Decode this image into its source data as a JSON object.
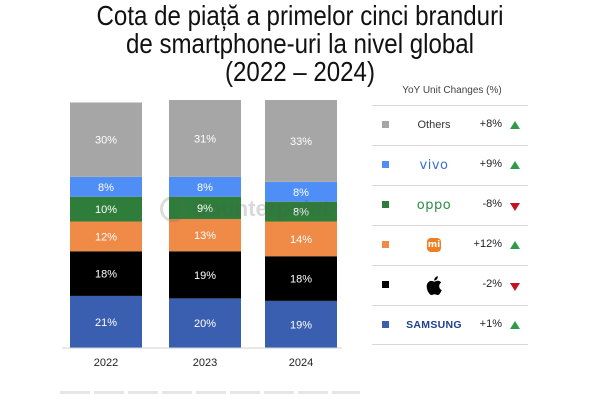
{
  "title_lines": [
    "Cota de piață a primelor cinci branduri",
    "de smartphone-uri la nivel global",
    "(2022 – 2024)"
  ],
  "watermark": "Counterpoint",
  "legend": {
    "title": "YoY Unit Changes (%)",
    "items": [
      {
        "key": "others",
        "label": "Others",
        "change": "+8%",
        "trend": "up",
        "color": "#a6a6a6"
      },
      {
        "key": "vivo",
        "label": "vivo",
        "change": "+9%",
        "trend": "up",
        "color": "#4f8ef7"
      },
      {
        "key": "oppo",
        "label": "oppo",
        "change": "-8%",
        "trend": "down",
        "color": "#2e7d3a"
      },
      {
        "key": "xiaomi",
        "label": "mi",
        "change": "+12%",
        "trend": "up",
        "color": "#f08a47"
      },
      {
        "key": "apple",
        "label": "",
        "change": "-2%",
        "trend": "down",
        "color": "#000000"
      },
      {
        "key": "samsung",
        "label": "SAMSUNG",
        "change": "+1%",
        "trend": "up",
        "color": "#3a5fb0"
      }
    ]
  },
  "chart_data": {
    "type": "bar",
    "stacked": true,
    "categories": [
      "2022",
      "2023",
      "2024"
    ],
    "series": [
      {
        "name": "Samsung",
        "color": "#3a5fb0",
        "values": [
          21,
          20,
          19
        ]
      },
      {
        "name": "Apple",
        "color": "#000000",
        "values": [
          18,
          19,
          18
        ]
      },
      {
        "name": "Xiaomi",
        "color": "#f08a47",
        "values": [
          12,
          13,
          14
        ]
      },
      {
        "name": "OPPO",
        "color": "#2e7d3a",
        "values": [
          10,
          9,
          8
        ]
      },
      {
        "name": "vivo",
        "color": "#4f8ef7",
        "values": [
          8,
          8,
          8
        ]
      },
      {
        "name": "Others",
        "color": "#a6a6a6",
        "values": [
          30,
          31,
          33
        ]
      }
    ],
    "value_format": "{v}%",
    "ylim": [
      0,
      100
    ],
    "grid": false,
    "legend_position": "right"
  }
}
